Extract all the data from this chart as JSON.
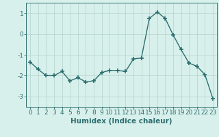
{
  "x": [
    0,
    1,
    2,
    3,
    4,
    5,
    6,
    7,
    8,
    9,
    10,
    11,
    12,
    13,
    14,
    15,
    16,
    17,
    18,
    19,
    20,
    21,
    22,
    23
  ],
  "y": [
    -1.35,
    -1.7,
    -2.0,
    -2.0,
    -1.8,
    -2.25,
    -2.1,
    -2.3,
    -2.25,
    -1.85,
    -1.75,
    -1.75,
    -1.8,
    -1.2,
    -1.15,
    0.75,
    1.05,
    0.75,
    -0.05,
    -0.75,
    -1.4,
    -1.55,
    -1.95,
    -3.1
  ],
  "line_color": "#2d6e6e",
  "marker": "+",
  "marker_size": 4,
  "marker_lw": 1.2,
  "line_width": 1.0,
  "bg_color": "#d8f0ec",
  "grid_color": "#b8d8d0",
  "xlabel": "Humidex (Indice chaleur)",
  "xlim": [
    -0.5,
    23.5
  ],
  "ylim": [
    -3.5,
    1.5
  ],
  "yticks": [
    -3,
    -2,
    -1,
    0,
    1
  ],
  "xticks": [
    0,
    1,
    2,
    3,
    4,
    5,
    6,
    7,
    8,
    9,
    10,
    11,
    12,
    13,
    14,
    15,
    16,
    17,
    18,
    19,
    20,
    21,
    22,
    23
  ],
  "tick_label_size": 6.5,
  "xlabel_size": 7.5
}
